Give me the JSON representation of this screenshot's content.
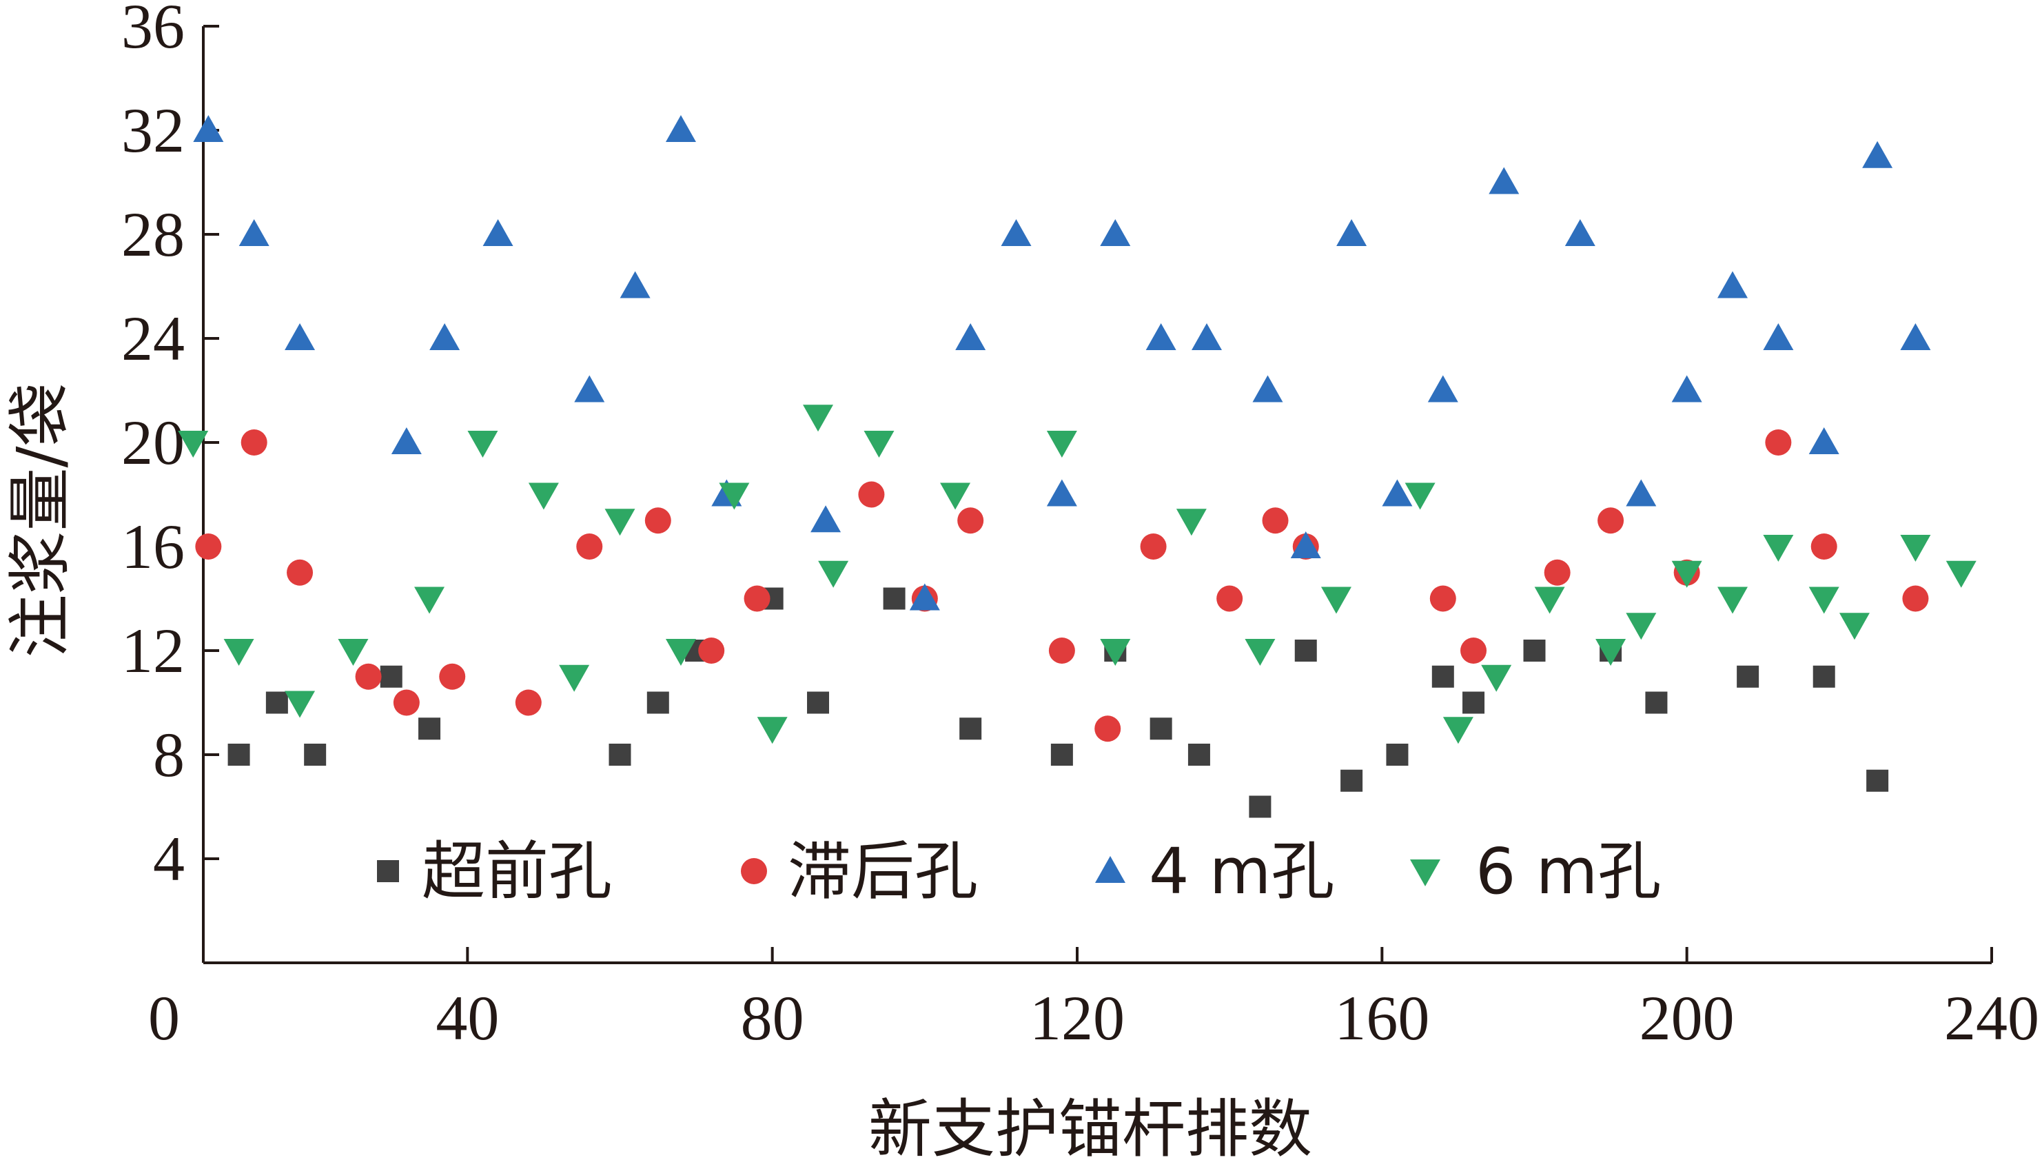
{
  "chart_data": {
    "type": "scatter",
    "title": "",
    "xlabel": "新支护锚杆排数",
    "ylabel": "注浆量/袋",
    "xlim": [
      0,
      240
    ],
    "ylim": [
      0,
      36
    ],
    "xticks": [
      0,
      40,
      80,
      120,
      160,
      200,
      240
    ],
    "yticks": [
      4,
      8,
      12,
      16,
      20,
      24,
      28,
      32,
      36
    ],
    "grid": false,
    "legend_position": "bottom",
    "series": [
      {
        "name": "超前孔",
        "marker": "square",
        "color": "#404040",
        "points": [
          [
            10,
            8
          ],
          [
            15,
            10
          ],
          [
            20,
            8
          ],
          [
            30,
            11
          ],
          [
            35,
            9
          ],
          [
            60,
            8
          ],
          [
            65,
            10
          ],
          [
            70,
            12
          ],
          [
            80,
            14
          ],
          [
            86,
            10
          ],
          [
            96,
            14
          ],
          [
            106,
            9
          ],
          [
            118,
            8
          ],
          [
            125,
            12
          ],
          [
            131,
            9
          ],
          [
            136,
            8
          ],
          [
            144,
            6
          ],
          [
            150,
            12
          ],
          [
            156,
            7
          ],
          [
            162,
            8
          ],
          [
            168,
            11
          ],
          [
            172,
            10
          ],
          [
            180,
            12
          ],
          [
            190,
            12
          ],
          [
            196,
            10
          ],
          [
            208,
            11
          ],
          [
            218,
            11
          ],
          [
            225,
            7
          ]
        ]
      },
      {
        "name": "滞后孔",
        "marker": "circle",
        "color": "#E03C3C",
        "points": [
          [
            6,
            16
          ],
          [
            12,
            20
          ],
          [
            18,
            15
          ],
          [
            27,
            11
          ],
          [
            32,
            10
          ],
          [
            38,
            11
          ],
          [
            48,
            10
          ],
          [
            56,
            16
          ],
          [
            65,
            17
          ],
          [
            72,
            12
          ],
          [
            78,
            14
          ],
          [
            93,
            18
          ],
          [
            100,
            14
          ],
          [
            106,
            17
          ],
          [
            118,
            12
          ],
          [
            124,
            9
          ],
          [
            130,
            16
          ],
          [
            140,
            14
          ],
          [
            146,
            17
          ],
          [
            150,
            16
          ],
          [
            168,
            14
          ],
          [
            172,
            12
          ],
          [
            183,
            15
          ],
          [
            190,
            17
          ],
          [
            200,
            15
          ],
          [
            212,
            20
          ],
          [
            218,
            16
          ],
          [
            230,
            14
          ]
        ]
      },
      {
        "name": "4 m孔",
        "marker": "triangle-up",
        "color": "#2E6FBD",
        "points": [
          [
            6,
            32
          ],
          [
            12,
            28
          ],
          [
            18,
            24
          ],
          [
            32,
            20
          ],
          [
            37,
            24
          ],
          [
            44,
            28
          ],
          [
            56,
            22
          ],
          [
            62,
            26
          ],
          [
            68,
            32
          ],
          [
            74,
            18
          ],
          [
            87,
            17
          ],
          [
            100,
            14
          ],
          [
            106,
            24
          ],
          [
            112,
            28
          ],
          [
            118,
            18
          ],
          [
            125,
            28
          ],
          [
            131,
            24
          ],
          [
            137,
            24
          ],
          [
            145,
            22
          ],
          [
            150,
            16
          ],
          [
            156,
            28
          ],
          [
            162,
            18
          ],
          [
            168,
            22
          ],
          [
            176,
            30
          ],
          [
            186,
            28
          ],
          [
            194,
            18
          ],
          [
            200,
            22
          ],
          [
            206,
            26
          ],
          [
            212,
            24
          ],
          [
            218,
            20
          ],
          [
            225,
            31
          ],
          [
            230,
            24
          ]
        ]
      },
      {
        "name": "6 m孔",
        "marker": "triangle-down",
        "color": "#2EA864",
        "points": [
          [
            4,
            20
          ],
          [
            10,
            12
          ],
          [
            18,
            10
          ],
          [
            25,
            12
          ],
          [
            35,
            14
          ],
          [
            42,
            20
          ],
          [
            50,
            18
          ],
          [
            54,
            11
          ],
          [
            60,
            17
          ],
          [
            68,
            12
          ],
          [
            75,
            18
          ],
          [
            80,
            9
          ],
          [
            86,
            21
          ],
          [
            88,
            15
          ],
          [
            94,
            20
          ],
          [
            104,
            18
          ],
          [
            118,
            20
          ],
          [
            125,
            12
          ],
          [
            135,
            17
          ],
          [
            144,
            12
          ],
          [
            154,
            14
          ],
          [
            165,
            18
          ],
          [
            170,
            9
          ],
          [
            175,
            11
          ],
          [
            182,
            14
          ],
          [
            190,
            12
          ],
          [
            194,
            13
          ],
          [
            200,
            15
          ],
          [
            206,
            14
          ],
          [
            212,
            16
          ],
          [
            218,
            14
          ],
          [
            222,
            13
          ],
          [
            230,
            16
          ],
          [
            236,
            15
          ]
        ]
      }
    ]
  },
  "xaxis": {
    "ticks": [
      "0",
      "40",
      "80",
      "120",
      "160",
      "200",
      "240"
    ]
  },
  "yaxis": {
    "ticks": [
      "4",
      "8",
      "12",
      "16",
      "20",
      "24",
      "28",
      "32",
      "36"
    ]
  }
}
